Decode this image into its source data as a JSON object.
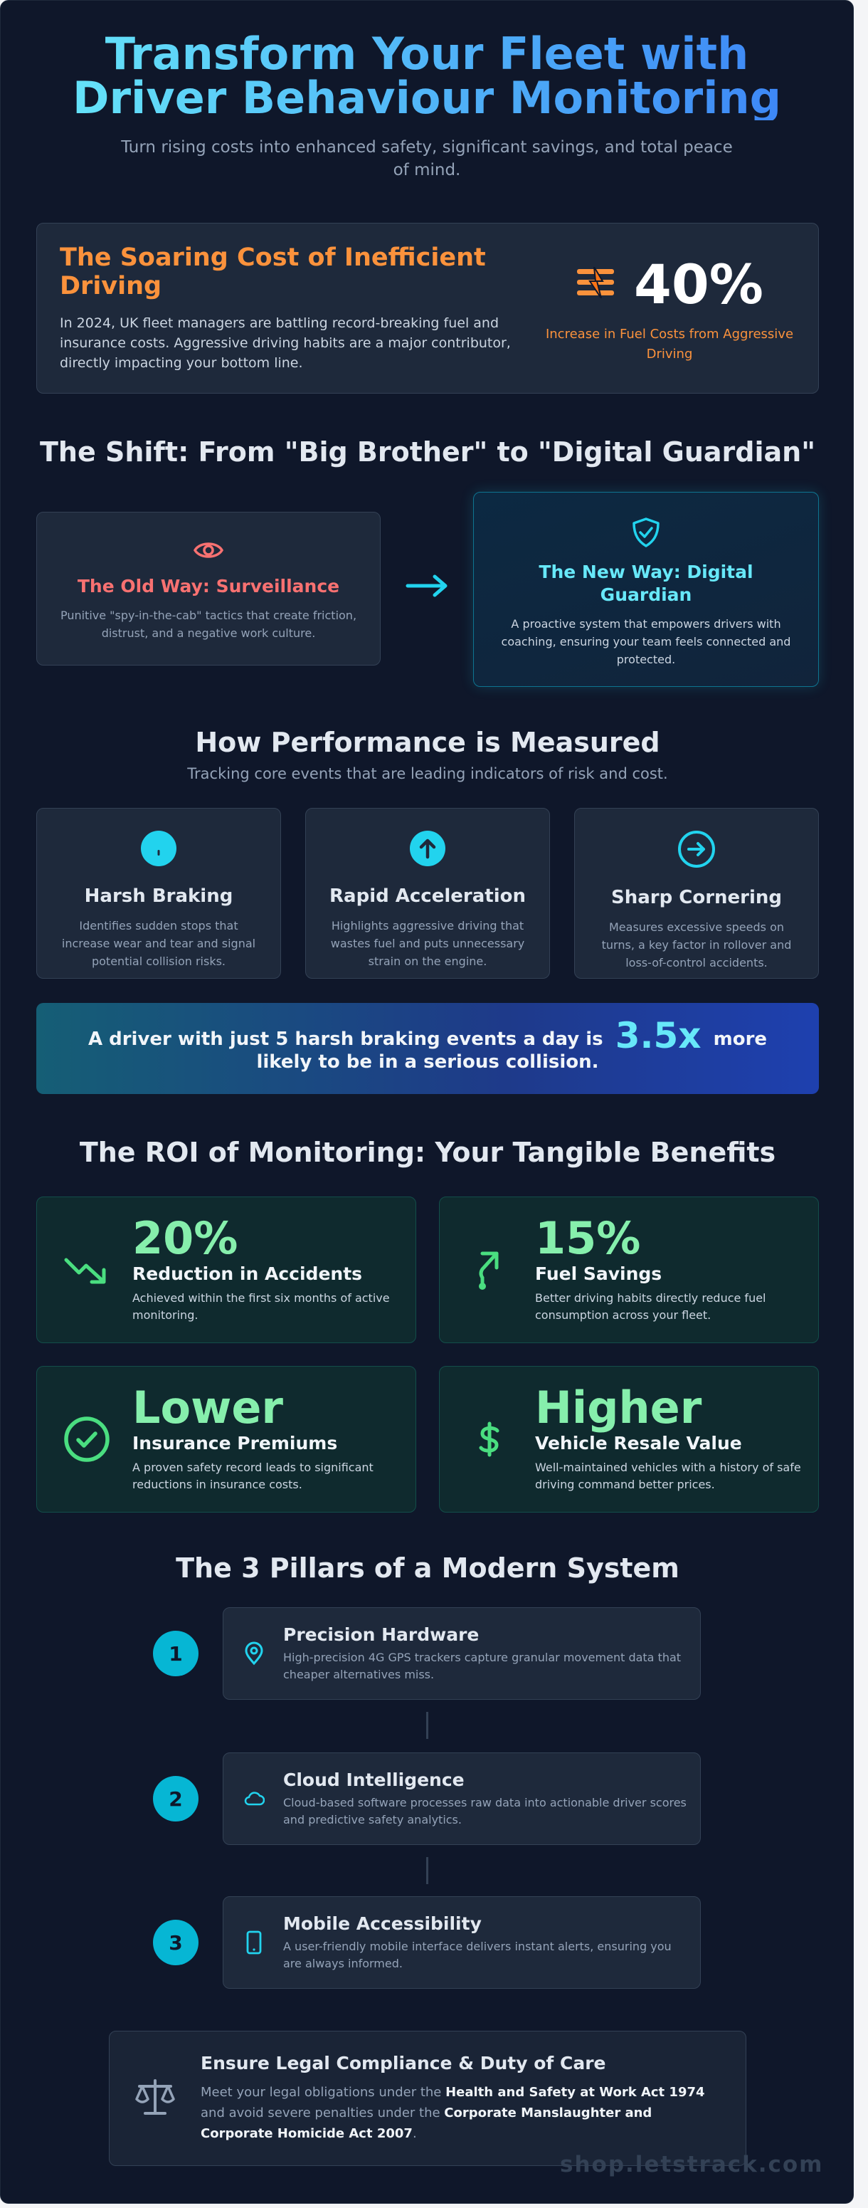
{
  "hero": {
    "title": "Transform Your Fleet with Driver Behaviour Monitoring",
    "subtitle": "Turn rising costs into enhanced safety, significant savings, and total peace of mind."
  },
  "cost": {
    "title": "The Soaring Cost of Inefficient Driving",
    "text": "In 2024, UK fleet managers are battling record-breaking fuel and insurance costs. Aggressive driving habits are a major contributor, directly impacting your bottom line.",
    "stat": "40%",
    "stat_caption": "Increase in Fuel Costs from Aggressive Driving",
    "icon": "fuel-cost-icon"
  },
  "shift": {
    "title": "The Shift: From \"Big Brother\" to \"Digital Guardian\"",
    "old": {
      "title": "The Old Way: Surveillance",
      "text": "Punitive \"spy-in-the-cab\" tactics that create friction, distrust, and a negative work culture.",
      "icon": "eye-icon"
    },
    "new": {
      "title": "The New Way: Digital Guardian",
      "text": "A proactive system that empowers drivers with coaching, ensuring your team feels connected and protected.",
      "icon": "shield-check-icon"
    }
  },
  "measured": {
    "title": "How Performance is Measured",
    "subtitle": "Tracking core events that are leading indicators of risk and cost.",
    "items": [
      {
        "title": "Harsh Braking",
        "text": "Identifies sudden stops that increase wear and tear and signal potential collision risks.",
        "icon": "alert-circle-icon"
      },
      {
        "title": "Rapid Acceleration",
        "text": "Highlights aggressive driving that wastes fuel and puts unnecessary strain on the engine.",
        "icon": "arrow-up-circle-icon"
      },
      {
        "title": "Sharp Cornering",
        "text": "Measures excessive speeds on turns, a key factor in rollover and loss-of-control accidents.",
        "icon": "arrow-right-circle-icon"
      }
    ]
  },
  "banner": {
    "before": "A driver with just 5 harsh braking events a day is",
    "highlight": "3.5x",
    "after": "more likely to be in a serious collision."
  },
  "roi": {
    "title": "The ROI of Monitoring: Your Tangible Benefits",
    "items": [
      {
        "value": "20%",
        "label": "Reduction in Accidents",
        "text": "Achieved within the first six months of active monitoring.",
        "icon": "trending-down-icon"
      },
      {
        "value": "15%",
        "label": "Fuel Savings",
        "text": "Better driving habits directly reduce fuel consumption across your fleet.",
        "icon": "fuel-savings-icon"
      },
      {
        "value": "Lower",
        "label": "Insurance Premiums",
        "text": "A proven safety record leads to significant reductions in insurance costs.",
        "icon": "check-circle-icon"
      },
      {
        "value": "Higher",
        "label": "Vehicle Resale Value",
        "text": "Well-maintained vehicles with a history of safe driving command better prices.",
        "icon": "dollar-icon"
      }
    ]
  },
  "pillars": {
    "title": "The 3 Pillars of a Modern System",
    "items": [
      {
        "num": "1",
        "title": "Precision Hardware",
        "text": "High-precision 4G GPS trackers capture granular movement data that cheaper alternatives miss.",
        "icon": "map-pin-icon"
      },
      {
        "num": "2",
        "title": "Cloud Intelligence",
        "text": "Cloud-based software processes raw data into actionable driver scores and predictive safety analytics.",
        "icon": "cloud-icon"
      },
      {
        "num": "3",
        "title": "Mobile Accessibility",
        "text": "A user-friendly mobile interface delivers instant alerts, ensuring you are always informed.",
        "icon": "smartphone-icon"
      }
    ]
  },
  "legal": {
    "title": "Ensure Legal Compliance & Duty of Care",
    "t1": "Meet your legal obligations under the ",
    "b1": "Health and Safety at Work Act 1974",
    "t2": " and avoid severe penalties under the ",
    "b2": "Corporate Manslaughter and Corporate Homicide Act 2007",
    "t3": ".",
    "icon": "scales-icon"
  },
  "watermark": "shop.letstrack.com",
  "colors": {
    "background": "#0f172a",
    "card": "#1e293b",
    "accent_cyan": "#22d3ee",
    "accent_orange": "#fb923c",
    "accent_green": "#4ade80",
    "accent_red": "#f87171"
  }
}
